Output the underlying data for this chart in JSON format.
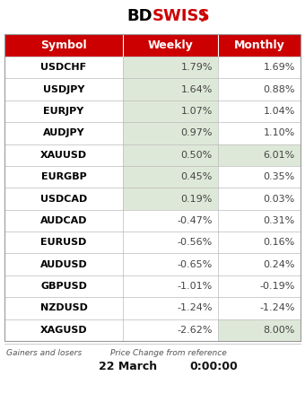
{
  "headers": [
    "Symbol",
    "Weekly",
    "Monthly"
  ],
  "rows": [
    [
      "USDCHF",
      "1.79%",
      "1.69%"
    ],
    [
      "USDJPY",
      "1.64%",
      "0.88%"
    ],
    [
      "EURJPY",
      "1.07%",
      "1.04%"
    ],
    [
      "AUDJPY",
      "0.97%",
      "1.10%"
    ],
    [
      "XAUUSD",
      "0.50%",
      "6.01%"
    ],
    [
      "EURGBP",
      "0.45%",
      "0.35%"
    ],
    [
      "USDCAD",
      "0.19%",
      "0.03%"
    ],
    [
      "AUDCAD",
      "-0.47%",
      "0.31%"
    ],
    [
      "EURUSD",
      "-0.56%",
      "0.16%"
    ],
    [
      "AUDUSD",
      "-0.65%",
      "0.24%"
    ],
    [
      "GBPUSD",
      "-1.01%",
      "-0.19%"
    ],
    [
      "NZDUSD",
      "-1.24%",
      "-1.24%"
    ],
    [
      "XAGUSD",
      "-2.62%",
      "8.00%"
    ]
  ],
  "weekly_green": [
    0,
    1,
    2,
    3,
    4,
    5,
    6
  ],
  "monthly_green": [
    4,
    12
  ],
  "header_bg": "#CC0000",
  "header_text": "#FFFFFF",
  "row_bg_white": "#FFFFFF",
  "green_bg": "#DEE8D8",
  "symbol_text": "#000000",
  "data_text": "#444444",
  "border_color": "#BBBBBB",
  "outer_border": "#999999",
  "footer_left": "Gainers and losers",
  "footer_right": "Price Change from reference",
  "footer_date": "22 March",
  "footer_time": "0:00:00",
  "fig_w": 3.4,
  "fig_h": 4.48,
  "dpi": 100
}
